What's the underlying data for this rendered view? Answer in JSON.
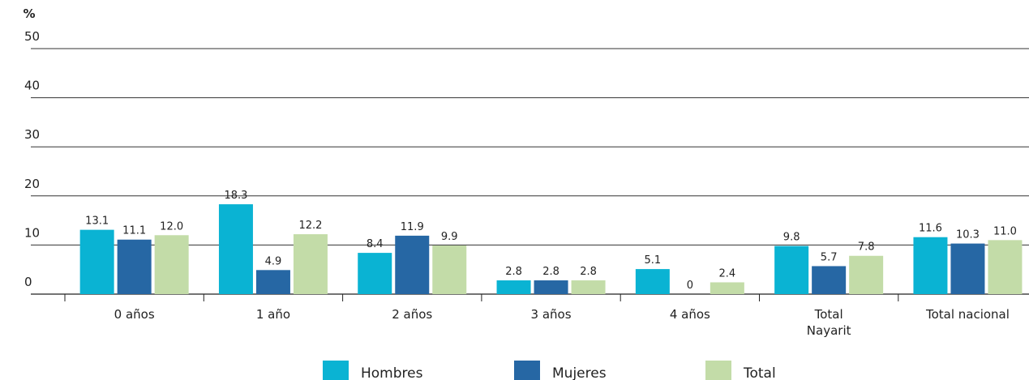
{
  "chart_data": {
    "type": "bar",
    "y_label": "%",
    "categories": [
      "0 años",
      "1 año",
      "2 años",
      "3 años",
      "4 años",
      "Total\nNayarit",
      "Total nacional"
    ],
    "series": [
      {
        "name": "Hombres",
        "color": "#0ab3d3",
        "values": [
          13.1,
          18.3,
          8.4,
          2.8,
          5.1,
          9.8,
          11.6
        ],
        "value_labels": [
          "13.1",
          "18.3",
          "8.4",
          "2.8",
          "5.1",
          "9.8",
          "11.6"
        ]
      },
      {
        "name": "Mujeres",
        "color": "#2667a4",
        "values": [
          11.1,
          4.9,
          11.9,
          2.8,
          0,
          5.7,
          10.3
        ],
        "value_labels": [
          "11.1",
          "4.9",
          "11.9",
          "2.8",
          "0",
          "5.7",
          "10.3"
        ]
      },
      {
        "name": "Total",
        "color": "#c3dca8",
        "values": [
          12.0,
          12.2,
          9.9,
          2.8,
          2.4,
          7.8,
          11.0
        ],
        "value_labels": [
          "12.0",
          "12.2",
          "9.9",
          "2.8",
          "2.4",
          "7.8",
          "11.0"
        ]
      }
    ],
    "ylim": [
      0,
      50
    ],
    "yticks": [
      0,
      10,
      20,
      30,
      40,
      50
    ],
    "grid": true,
    "legend": "bottom"
  }
}
